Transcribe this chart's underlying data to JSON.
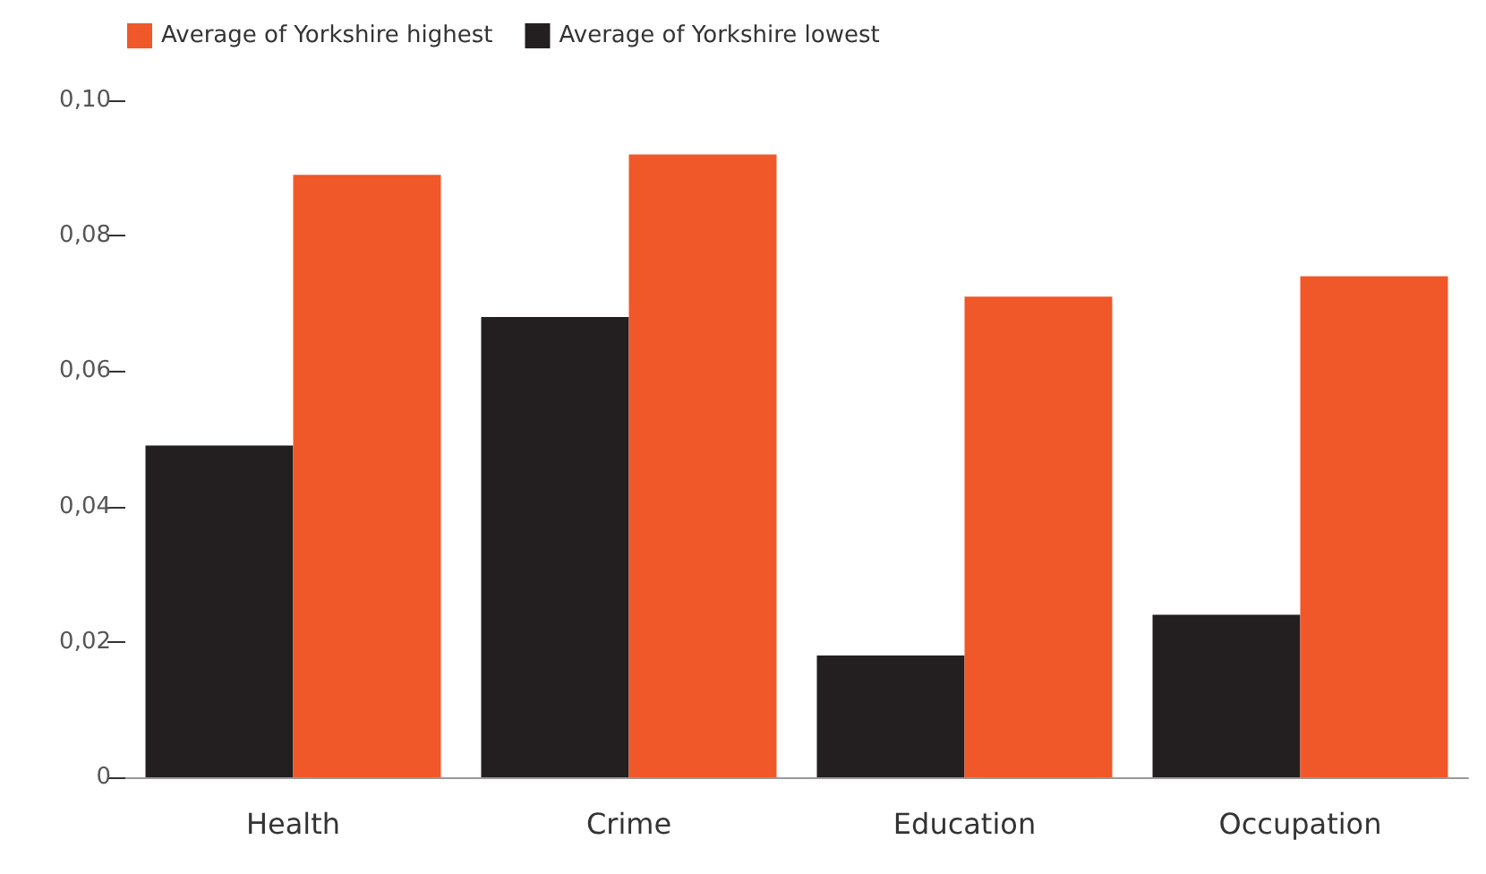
{
  "chart_data": {
    "type": "bar",
    "categories": [
      "Health",
      "Crime",
      "Education",
      "Occupation"
    ],
    "series": [
      {
        "name": "Average of Yorkshire lowest",
        "color": "#231f20",
        "values": [
          0.049,
          0.068,
          0.018,
          0.024
        ]
      },
      {
        "name": "Average of Yorkshire highest",
        "color": "#f0582a",
        "values": [
          0.089,
          0.092,
          0.071,
          0.074
        ]
      }
    ],
    "ylim": [
      0,
      0.1
    ],
    "yticks": [
      0,
      {
        "value": 0.02,
        "label": "0,02"
      },
      {
        "value": 0.04,
        "label": "0,04"
      },
      {
        "value": 0.06,
        "label": "0,06"
      },
      {
        "value": 0.08,
        "label": "0,08"
      },
      {
        "value": 0.1,
        "label": "0,10"
      }
    ],
    "legend": "top left",
    "grid": false
  }
}
